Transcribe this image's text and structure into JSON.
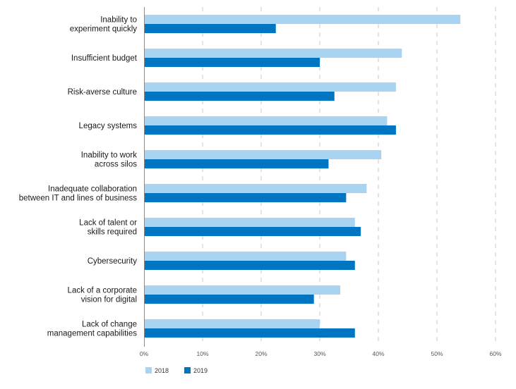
{
  "chart_data": {
    "type": "bar",
    "orientation": "horizontal",
    "title": "",
    "xlabel": "",
    "ylabel": "",
    "xlim": [
      0,
      60
    ],
    "x_ticks": [
      "0%",
      "10%",
      "20%",
      "30%",
      "40%",
      "50%",
      "60%"
    ],
    "grid": "vertical dashed",
    "legend_position": "bottom-left",
    "categories": [
      [
        "Inability to",
        "experiment quickly"
      ],
      [
        "Insufficient budget"
      ],
      [
        "Risk-averse culture"
      ],
      [
        "Legacy systems"
      ],
      [
        "Inability to work",
        "across silos"
      ],
      [
        "Inadequate collaboration",
        "between IT and lines of business"
      ],
      [
        "Lack of talent or",
        "skills required"
      ],
      [
        "Cybersecurity"
      ],
      [
        "Lack of a corporate",
        "vision for digital"
      ],
      [
        "Lack of change",
        "management capabilities"
      ]
    ],
    "series": [
      {
        "name": "2018",
        "color": "#a9d3f2",
        "values": [
          54,
          44,
          43,
          41.5,
          40.5,
          38,
          36,
          34.5,
          33.5,
          30
        ]
      },
      {
        "name": "2019",
        "color": "#0076c2",
        "values": [
          22.5,
          30,
          32.5,
          43,
          31.5,
          34.5,
          37,
          36,
          29,
          36
        ]
      }
    ]
  }
}
